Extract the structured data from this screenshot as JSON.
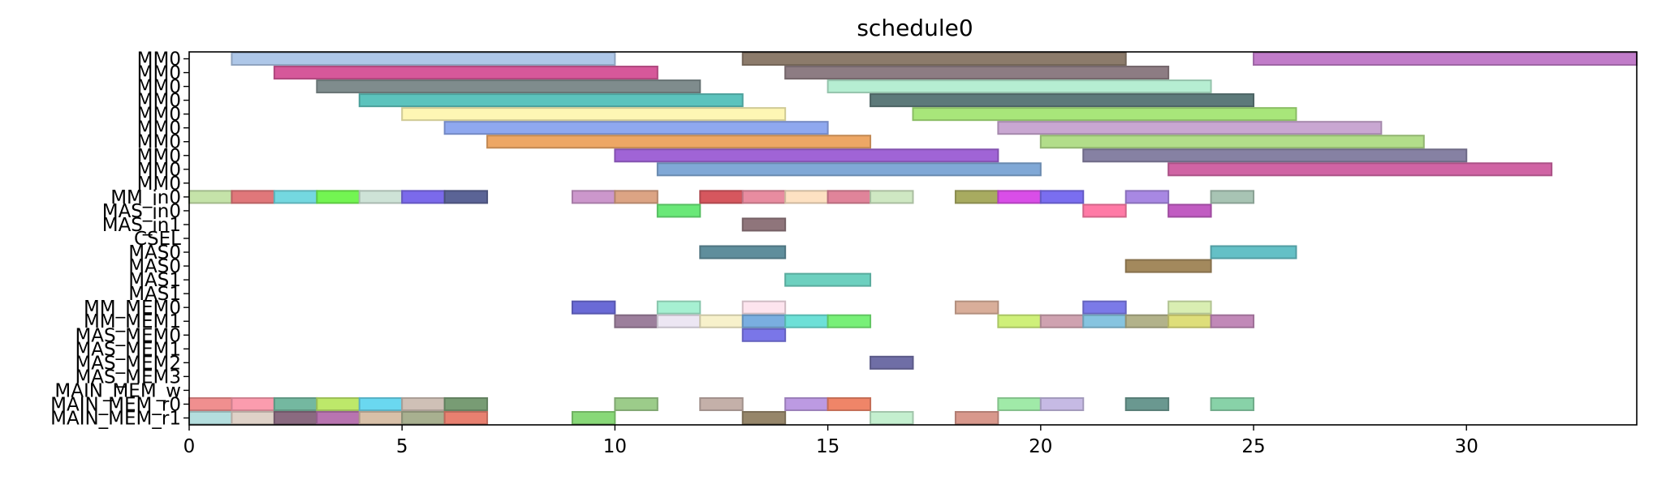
{
  "chart_data": {
    "type": "gantt",
    "title": "schedule0",
    "xlabel": "",
    "ylabel": "",
    "xlim": [
      0,
      34
    ],
    "xticks": [
      0,
      5,
      10,
      15,
      20,
      25,
      30
    ],
    "grid": false,
    "rows": [
      "MM0",
      "MM0",
      "MM0",
      "MM0",
      "MM0",
      "MM0",
      "MM0",
      "MM0",
      "MM0",
      "MM0",
      "MM_in0",
      "MAS_in0",
      "MAS_in1",
      "CSEL",
      "MAS0",
      "MAS0",
      "MAS1",
      "MAS1",
      "MM_MEM0",
      "MM_MEM1",
      "MAS_MEM0",
      "MAS_MEM1",
      "MAS_MEM2",
      "MAS_MEM3",
      "MAIN_MEM_w",
      "MAIN_MEM_r0",
      "MAIN_MEM_r1"
    ],
    "tasks": [
      {
        "row": 0,
        "start": 1,
        "end": 10,
        "color": "#aec7e8"
      },
      {
        "row": 0,
        "start": 13,
        "end": 22,
        "color": "#8c7b6b"
      },
      {
        "row": 0,
        "start": 25,
        "end": 34,
        "color": "#c17cc9"
      },
      {
        "row": 1,
        "start": 2,
        "end": 11,
        "color": "#d6589a"
      },
      {
        "row": 1,
        "start": 14,
        "end": 23,
        "color": "#8d7c83"
      },
      {
        "row": 2,
        "start": 3,
        "end": 12,
        "color": "#7f8c8d"
      },
      {
        "row": 2,
        "start": 15,
        "end": 24,
        "color": "#b6eed2"
      },
      {
        "row": 3,
        "start": 4,
        "end": 13,
        "color": "#5cc3bd"
      },
      {
        "row": 3,
        "start": 16,
        "end": 25,
        "color": "#5d7a7a"
      },
      {
        "row": 4,
        "start": 5,
        "end": 14,
        "color": "#fef6b4"
      },
      {
        "row": 4,
        "start": 17,
        "end": 26,
        "color": "#a8e67a"
      },
      {
        "row": 5,
        "start": 6,
        "end": 15,
        "color": "#8fa8ef"
      },
      {
        "row": 5,
        "start": 19,
        "end": 28,
        "color": "#c9a7d2"
      },
      {
        "row": 6,
        "start": 7,
        "end": 16,
        "color": "#eda765"
      },
      {
        "row": 6,
        "start": 20,
        "end": 29,
        "color": "#b2dd8a"
      },
      {
        "row": 7,
        "start": 10,
        "end": 19,
        "color": "#a064d6"
      },
      {
        "row": 7,
        "start": 21,
        "end": 30,
        "color": "#8681a3"
      },
      {
        "row": 8,
        "start": 11,
        "end": 20,
        "color": "#80a8d6"
      },
      {
        "row": 8,
        "start": 23,
        "end": 32,
        "color": "#d064a4"
      },
      {
        "row": 10,
        "start": 0,
        "end": 1,
        "color": "#c5e3a9"
      },
      {
        "row": 10,
        "start": 1,
        "end": 2,
        "color": "#e0777a"
      },
      {
        "row": 10,
        "start": 2,
        "end": 3,
        "color": "#74d8e0"
      },
      {
        "row": 10,
        "start": 3,
        "end": 4,
        "color": "#73f552"
      },
      {
        "row": 10,
        "start": 4,
        "end": 5,
        "color": "#cee3d7"
      },
      {
        "row": 10,
        "start": 5,
        "end": 6,
        "color": "#7b6aeb"
      },
      {
        "row": 10,
        "start": 6,
        "end": 7,
        "color": "#5b6496"
      },
      {
        "row": 10,
        "start": 9,
        "end": 10,
        "color": "#cc97cc"
      },
      {
        "row": 10,
        "start": 10,
        "end": 11,
        "color": "#dca484"
      },
      {
        "row": 10,
        "start": 12,
        "end": 13,
        "color": "#d6575e"
      },
      {
        "row": 10,
        "start": 13,
        "end": 14,
        "color": "#e88ca0"
      },
      {
        "row": 10,
        "start": 14,
        "end": 15,
        "color": "#fde1c2"
      },
      {
        "row": 10,
        "start": 15,
        "end": 16,
        "color": "#e0849a"
      },
      {
        "row": 10,
        "start": 16,
        "end": 17,
        "color": "#cfe8c3"
      },
      {
        "row": 10,
        "start": 18,
        "end": 19,
        "color": "#a8ab60"
      },
      {
        "row": 10,
        "start": 19,
        "end": 20,
        "color": "#d94ee8"
      },
      {
        "row": 10,
        "start": 20,
        "end": 21,
        "color": "#7a6ef0"
      },
      {
        "row": 10,
        "start": 22,
        "end": 23,
        "color": "#a888e3"
      },
      {
        "row": 10,
        "start": 24,
        "end": 25,
        "color": "#a8c4b4"
      },
      {
        "row": 11,
        "start": 11,
        "end": 12,
        "color": "#6ae878"
      },
      {
        "row": 11,
        "start": 21,
        "end": 22,
        "color": "#ff7aa6"
      },
      {
        "row": 11,
        "start": 23,
        "end": 24,
        "color": "#c15cc2"
      },
      {
        "row": 12,
        "start": 13,
        "end": 14,
        "color": "#8f757b"
      },
      {
        "row": 14,
        "start": 12,
        "end": 14,
        "color": "#5f8e9c"
      },
      {
        "row": 14,
        "start": 24,
        "end": 26,
        "color": "#64c0c6"
      },
      {
        "row": 15,
        "start": 22,
        "end": 24,
        "color": "#a3895d"
      },
      {
        "row": 16,
        "start": 14,
        "end": 16,
        "color": "#6dd0bf"
      },
      {
        "row": 18,
        "start": 9,
        "end": 10,
        "color": "#6a6ad6"
      },
      {
        "row": 18,
        "start": 11,
        "end": 12,
        "color": "#a6f0d2"
      },
      {
        "row": 18,
        "start": 13,
        "end": 14,
        "color": "#fde4ee"
      },
      {
        "row": 18,
        "start": 18,
        "end": 19,
        "color": "#d9ae9a"
      },
      {
        "row": 18,
        "start": 21,
        "end": 22,
        "color": "#7b7ae8"
      },
      {
        "row": 18,
        "start": 23,
        "end": 24,
        "color": "#d9eeb2"
      },
      {
        "row": 19,
        "start": 10,
        "end": 11,
        "color": "#9c7f9c"
      },
      {
        "row": 19,
        "start": 11,
        "end": 12,
        "color": "#ece6f3"
      },
      {
        "row": 19,
        "start": 12,
        "end": 13,
        "color": "#f7f1cb"
      },
      {
        "row": 19,
        "start": 13,
        "end": 14,
        "color": "#7aaee0"
      },
      {
        "row": 19,
        "start": 14,
        "end": 15,
        "color": "#6de0d7"
      },
      {
        "row": 19,
        "start": 15,
        "end": 16,
        "color": "#78f078"
      },
      {
        "row": 19,
        "start": 19,
        "end": 20,
        "color": "#cff07a"
      },
      {
        "row": 19,
        "start": 20,
        "end": 21,
        "color": "#cfa2b0"
      },
      {
        "row": 19,
        "start": 21,
        "end": 22,
        "color": "#86c4e0"
      },
      {
        "row": 19,
        "start": 22,
        "end": 23,
        "color": "#b2b28a"
      },
      {
        "row": 19,
        "start": 23,
        "end": 24,
        "color": "#dede7a"
      },
      {
        "row": 19,
        "start": 24,
        "end": 25,
        "color": "#c189b8"
      },
      {
        "row": 20,
        "start": 13,
        "end": 14,
        "color": "#7a76e8"
      },
      {
        "row": 22,
        "start": 16,
        "end": 17,
        "color": "#6f6ea6"
      },
      {
        "row": 25,
        "start": 0,
        "end": 1,
        "color": "#f08f8f"
      },
      {
        "row": 25,
        "start": 1,
        "end": 2,
        "color": "#fb9cae"
      },
      {
        "row": 25,
        "start": 2,
        "end": 3,
        "color": "#74b8a0"
      },
      {
        "row": 25,
        "start": 3,
        "end": 4,
        "color": "#bde86a"
      },
      {
        "row": 25,
        "start": 4,
        "end": 5,
        "color": "#6ad8f0"
      },
      {
        "row": 25,
        "start": 5,
        "end": 6,
        "color": "#cfc0b6"
      },
      {
        "row": 25,
        "start": 6,
        "end": 7,
        "color": "#789c74"
      },
      {
        "row": 25,
        "start": 10,
        "end": 11,
        "color": "#9ccc8a"
      },
      {
        "row": 25,
        "start": 12,
        "end": 13,
        "color": "#c4b0a9"
      },
      {
        "row": 25,
        "start": 14,
        "end": 15,
        "color": "#bc9ae2"
      },
      {
        "row": 25,
        "start": 15,
        "end": 16,
        "color": "#ef8568"
      },
      {
        "row": 25,
        "start": 19,
        "end": 20,
        "color": "#a0eaa8"
      },
      {
        "row": 25,
        "start": 20,
        "end": 21,
        "color": "#c6bae4"
      },
      {
        "row": 25,
        "start": 22,
        "end": 23,
        "color": "#6a9890"
      },
      {
        "row": 25,
        "start": 24,
        "end": 25,
        "color": "#88d2a8"
      },
      {
        "row": 26,
        "start": 0,
        "end": 1,
        "color": "#b4dede"
      },
      {
        "row": 26,
        "start": 1,
        "end": 2,
        "color": "#dfd2c8"
      },
      {
        "row": 26,
        "start": 2,
        "end": 3,
        "color": "#8a6a80"
      },
      {
        "row": 26,
        "start": 3,
        "end": 4,
        "color": "#b874b0"
      },
      {
        "row": 26,
        "start": 4,
        "end": 5,
        "color": "#d8c0a8"
      },
      {
        "row": 26,
        "start": 5,
        "end": 6,
        "color": "#a8b090"
      },
      {
        "row": 26,
        "start": 6,
        "end": 7,
        "color": "#e88070"
      },
      {
        "row": 26,
        "start": 9,
        "end": 10,
        "color": "#88d878"
      },
      {
        "row": 26,
        "start": 13,
        "end": 14,
        "color": "#96866a"
      },
      {
        "row": 26,
        "start": 16,
        "end": 17,
        "color": "#c4efcf"
      },
      {
        "row": 26,
        "start": 18,
        "end": 19,
        "color": "#d8988c"
      }
    ]
  }
}
